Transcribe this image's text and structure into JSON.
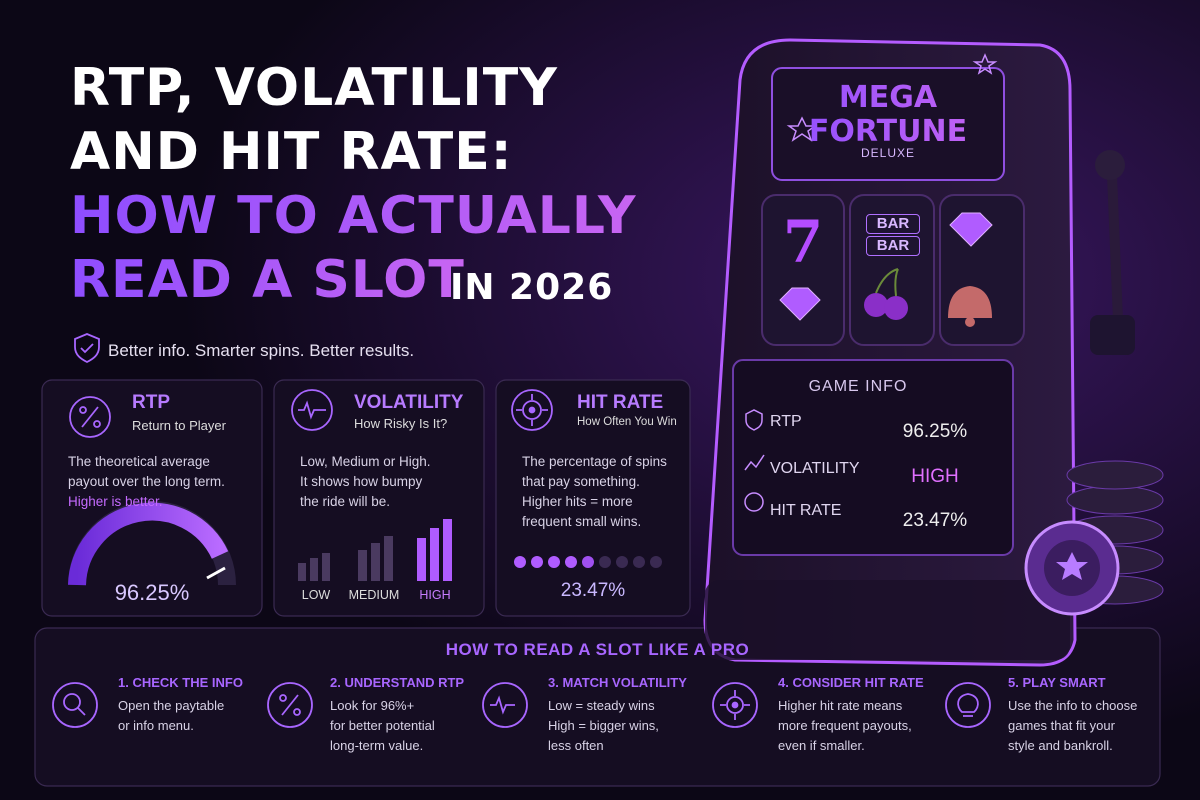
{
  "header": {
    "title_lines": [
      "RTP, VOLATILITY",
      "AND HIT RATE:",
      "HOW TO ACTUALLY",
      "READ A SLOT"
    ],
    "title_suffix": "IN 2026",
    "tagline": "Better info. Smarter spins. Better results."
  },
  "cards": [
    {
      "title": "RTP",
      "subtitle": "Return to Player",
      "body": [
        "The theoretical average",
        "payout over the long term."
      ],
      "highlight": "Higher is better.",
      "value": "96.25%"
    },
    {
      "title": "VOLATILITY",
      "subtitle": "How Risky Is It?",
      "body": [
        "Low, Medium or High.",
        "It shows how bumpy",
        "the ride will be."
      ],
      "levels": [
        "LOW",
        "MEDIUM",
        "HIGH"
      ]
    },
    {
      "title": "HIT RATE",
      "subtitle": "How Often You Win",
      "body": [
        "The percentage of spins",
        "that pay something.",
        "Higher hits = more",
        "frequent small wins."
      ],
      "value": "23.47%"
    }
  ],
  "machine": {
    "brand": [
      "MEGA",
      "FORTUNE"
    ],
    "edition": "DELUXE",
    "reel_symbols": [
      "7",
      "BAR",
      "BAR"
    ],
    "game_info": {
      "title": "GAME INFO",
      "rows": [
        {
          "label": "RTP",
          "value": "96.25%"
        },
        {
          "label": "VOLATILITY",
          "value": "HIGH"
        },
        {
          "label": "HIT RATE",
          "value": "23.47%"
        }
      ]
    }
  },
  "steps": {
    "title": "HOW TO READ A SLOT LIKE A PRO",
    "items": [
      {
        "title": "1. CHECK THE INFO",
        "body": [
          "Open the paytable",
          "or info menu."
        ]
      },
      {
        "title": "2. UNDERSTAND RTP",
        "body": [
          "Look for 96%+",
          "for better potential",
          "long-term value."
        ]
      },
      {
        "title": "3. MATCH VOLATILITY",
        "body": [
          "Low = steady wins",
          "High = bigger wins,",
          "less often"
        ]
      },
      {
        "title": "4. CONSIDER HIT RATE",
        "body": [
          "Higher hit rate means",
          "more frequent payouts,",
          "even if smaller."
        ]
      },
      {
        "title": "5. PLAY SMART",
        "body": [
          "Use the info to choose",
          "games that fit your",
          "style and bankroll."
        ]
      }
    ]
  }
}
